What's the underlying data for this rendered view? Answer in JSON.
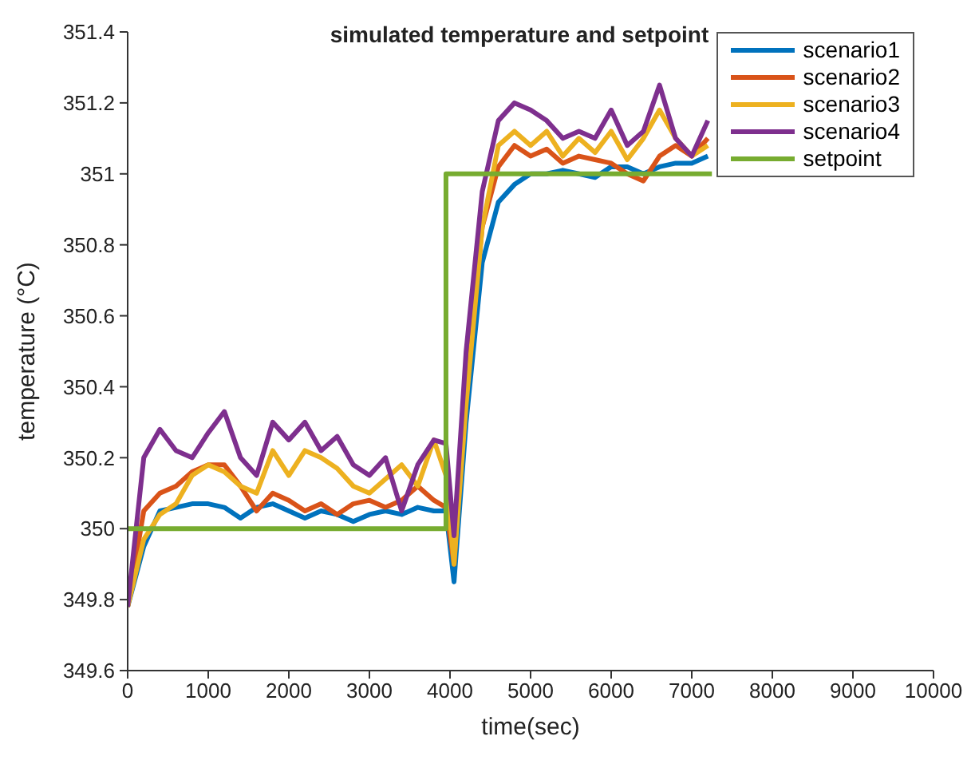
{
  "chart_data": {
    "type": "line",
    "title": "simulated temperature and setpoint",
    "xlabel": "time(sec)",
    "ylabel": "temperature (°C)",
    "x": [
      0,
      200,
      400,
      600,
      800,
      1000,
      1200,
      1400,
      1600,
      1800,
      2000,
      2200,
      2400,
      2600,
      2800,
      3000,
      3200,
      3400,
      3600,
      3800,
      3950,
      4050,
      4200,
      4400,
      4600,
      4800,
      5000,
      5200,
      5400,
      5600,
      5800,
      6000,
      6200,
      6400,
      6600,
      6800,
      7000,
      7200
    ],
    "series": [
      {
        "name": "scenario1",
        "color": "#0072bd",
        "values": [
          349.78,
          349.95,
          350.05,
          350.06,
          350.07,
          350.07,
          350.06,
          350.03,
          350.06,
          350.07,
          350.05,
          350.03,
          350.05,
          350.04,
          350.02,
          350.04,
          350.05,
          350.04,
          350.06,
          350.05,
          350.05,
          349.85,
          350.3,
          350.75,
          350.92,
          350.97,
          351.0,
          351.0,
          351.01,
          351.0,
          350.99,
          351.02,
          351.02,
          351.0,
          351.02,
          351.03,
          351.03,
          351.05
        ]
      },
      {
        "name": "scenario2",
        "color": "#d95319",
        "values": [
          349.78,
          350.05,
          350.1,
          350.12,
          350.16,
          350.18,
          350.18,
          350.12,
          350.05,
          350.1,
          350.08,
          350.05,
          350.07,
          350.04,
          350.07,
          350.08,
          350.06,
          350.08,
          350.12,
          350.08,
          350.06,
          349.9,
          350.4,
          350.85,
          351.02,
          351.08,
          351.05,
          351.07,
          351.03,
          351.05,
          351.04,
          351.03,
          351.0,
          350.98,
          351.05,
          351.08,
          351.05,
          351.1
        ]
      },
      {
        "name": "scenario3",
        "color": "#edb120",
        "values": [
          349.78,
          349.97,
          350.04,
          350.07,
          350.15,
          350.18,
          350.16,
          350.12,
          350.1,
          350.22,
          350.15,
          350.22,
          350.2,
          350.17,
          350.12,
          350.1,
          350.14,
          350.18,
          350.12,
          350.25,
          350.15,
          349.9,
          350.35,
          350.85,
          351.08,
          351.12,
          351.08,
          351.12,
          351.05,
          351.1,
          351.06,
          351.12,
          351.04,
          351.1,
          351.18,
          351.1,
          351.05,
          351.08
        ]
      },
      {
        "name": "scenario4",
        "color": "#7e2f8e",
        "values": [
          349.78,
          350.2,
          350.28,
          350.22,
          350.2,
          350.27,
          350.33,
          350.2,
          350.15,
          350.3,
          350.25,
          350.3,
          350.22,
          350.26,
          350.18,
          350.15,
          350.2,
          350.05,
          350.18,
          350.25,
          350.24,
          349.98,
          350.5,
          350.95,
          351.15,
          351.2,
          351.18,
          351.15,
          351.1,
          351.12,
          351.1,
          351.18,
          351.08,
          351.12,
          351.25,
          351.1,
          351.05,
          351.15
        ]
      },
      {
        "name": "setpoint",
        "color": "#77ac30",
        "x": [
          0,
          3950,
          3950,
          7250
        ],
        "values": [
          350,
          350,
          351,
          351
        ]
      }
    ],
    "xlim": [
      0,
      10000
    ],
    "xticks": [
      0,
      1000,
      2000,
      3000,
      4000,
      5000,
      6000,
      7000,
      8000,
      9000,
      10000
    ],
    "ylim": [
      349.6,
      351.4
    ],
    "yticks": [
      349.6,
      349.8,
      350,
      350.2,
      350.4,
      350.6,
      350.8,
      351,
      351.2,
      351.4
    ],
    "grid": false,
    "legend": "top right"
  }
}
